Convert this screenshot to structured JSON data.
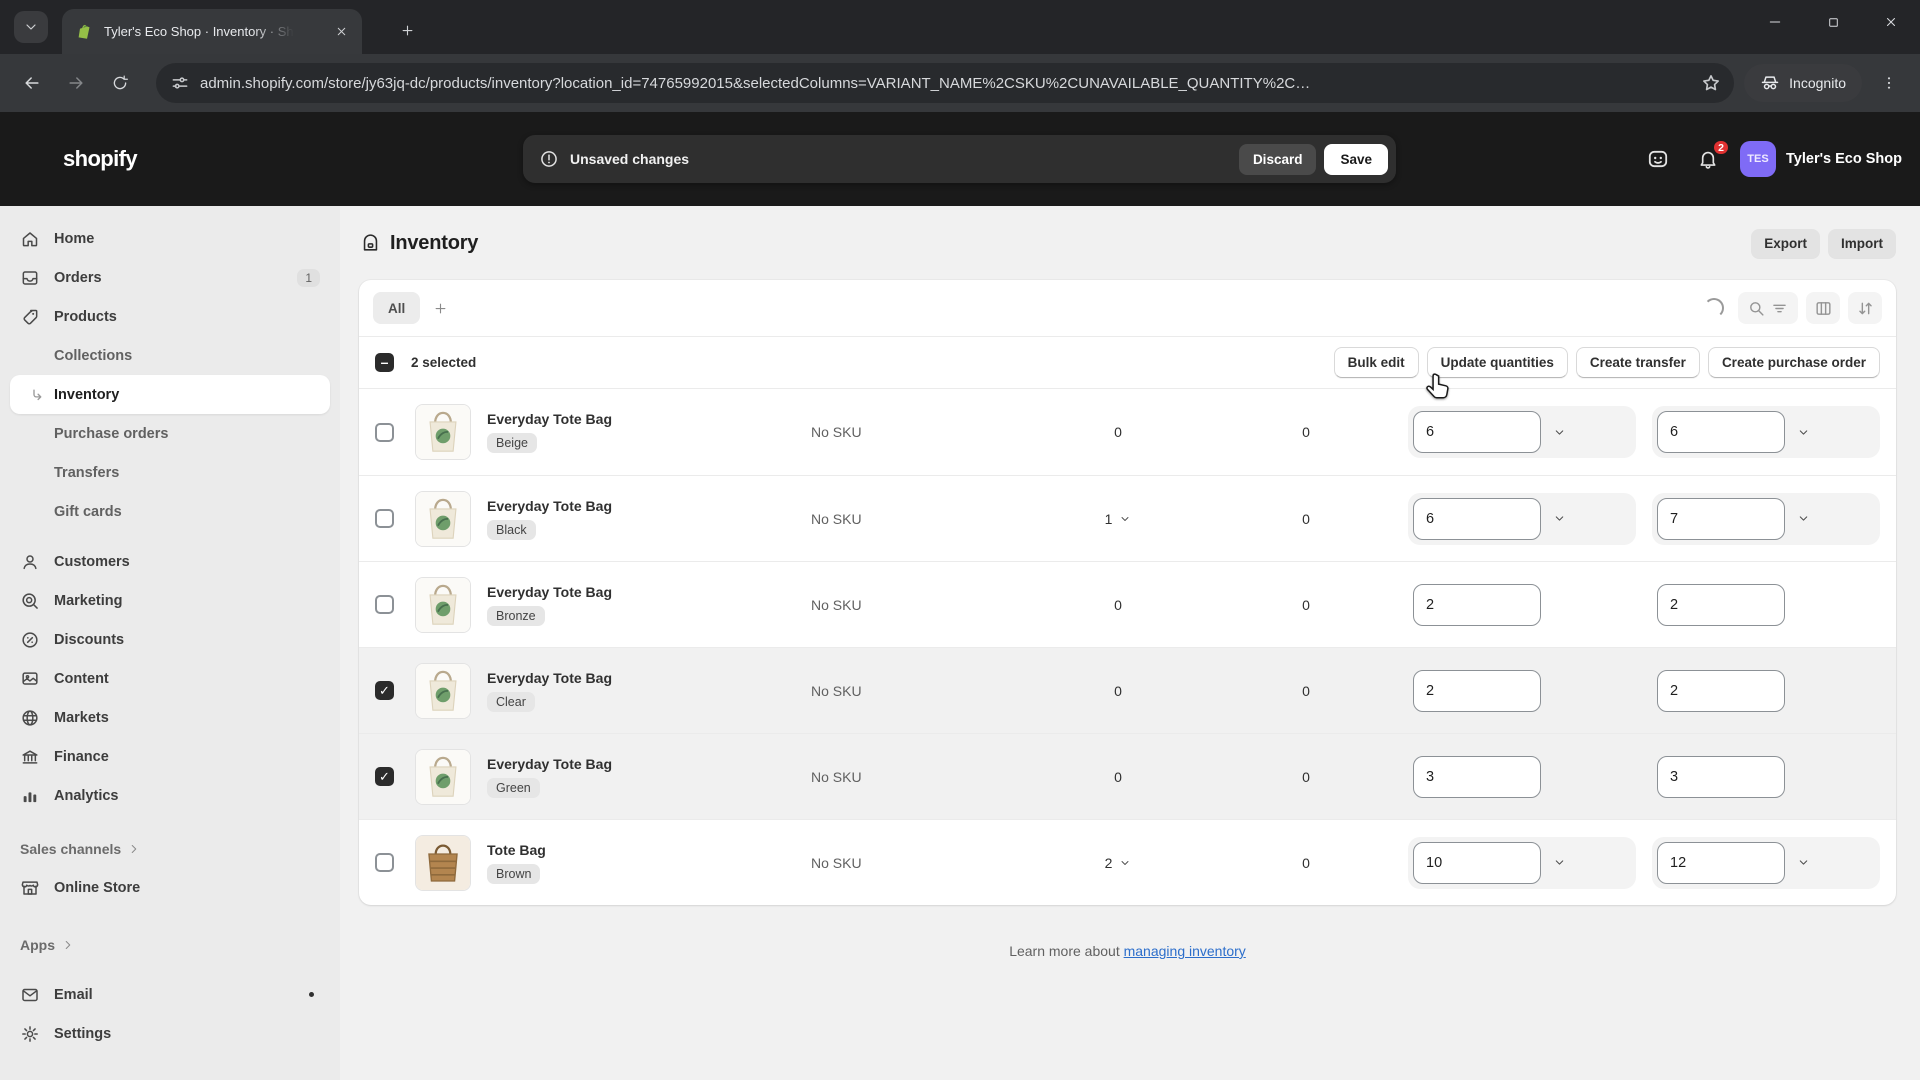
{
  "browser": {
    "tab_title": "Tyler's Eco Shop · Inventory · Sh",
    "url": "admin.shopify.com/store/jy63jq-dc/products/inventory?location_id=74765992015&selectedColumns=VARIANT_NAME%2CSKU%2CUNAVAILABLE_QUANTITY%2C…",
    "incognito_label": "Incognito"
  },
  "topbar": {
    "logo_text": "shopify",
    "unsaved_label": "Unsaved changes",
    "discard_label": "Discard",
    "save_label": "Save",
    "notification_count": "2",
    "avatar_initials": "TES",
    "store_name": "Tyler's Eco Shop"
  },
  "sidebar": {
    "items": [
      {
        "type": "item",
        "icon": "home-icon",
        "label": "Home"
      },
      {
        "type": "item",
        "icon": "orders-icon",
        "label": "Orders",
        "badge": "1"
      },
      {
        "type": "item",
        "icon": "products-icon",
        "label": "Products"
      },
      {
        "type": "subitem",
        "label": "Collections"
      },
      {
        "type": "subitem",
        "label": "Inventory",
        "active": true
      },
      {
        "type": "subitem",
        "label": "Purchase orders"
      },
      {
        "type": "subitem",
        "label": "Transfers"
      },
      {
        "type": "subitem",
        "label": "Gift cards"
      },
      {
        "type": "item",
        "icon": "customers-icon",
        "label": "Customers",
        "group_gap": true
      },
      {
        "type": "item",
        "icon": "marketing-icon",
        "label": "Marketing"
      },
      {
        "type": "item",
        "icon": "discounts-icon",
        "label": "Discounts"
      },
      {
        "type": "item",
        "icon": "content-icon",
        "label": "Content"
      },
      {
        "type": "item",
        "icon": "markets-icon",
        "label": "Markets"
      },
      {
        "type": "item",
        "icon": "finance-icon",
        "label": "Finance"
      },
      {
        "type": "item",
        "icon": "analytics-icon",
        "label": "Analytics"
      },
      {
        "type": "header",
        "label": "Sales channels",
        "gap": "gap-section"
      },
      {
        "type": "item",
        "icon": "online-store-icon",
        "label": "Online Store"
      },
      {
        "type": "header",
        "label": "Apps",
        "gap": "gap-apps"
      },
      {
        "type": "item",
        "icon": "email-icon",
        "label": "Email",
        "dot": true,
        "group_gap": true
      },
      {
        "type": "item",
        "icon": "settings-icon",
        "label": "Settings"
      }
    ]
  },
  "page": {
    "title": "Inventory",
    "export_label": "Export",
    "import_label": "Import",
    "tab_all": "All",
    "selected_text": "2 selected",
    "actions": [
      "Bulk edit",
      "Update quantities",
      "Create transfer",
      "Create purchase order"
    ],
    "footer_prefix": "Learn more about",
    "footer_link": "managing inventory"
  },
  "table": {
    "rows": [
      {
        "product": "Everyday Tote Bag",
        "variant": "Beige",
        "sku": "No SKU",
        "unavailable": "0",
        "unavailable_dropdown": false,
        "committed": "0",
        "available": "6",
        "available_dropdown": true,
        "on_hand": "6",
        "on_hand_dropdown": true,
        "checked": false,
        "thumb": "tote"
      },
      {
        "product": "Everyday Tote Bag",
        "variant": "Black",
        "sku": "No SKU",
        "unavailable": "1",
        "unavailable_dropdown": true,
        "committed": "0",
        "available": "6",
        "available_dropdown": true,
        "on_hand": "7",
        "on_hand_dropdown": true,
        "checked": false,
        "thumb": "tote"
      },
      {
        "product": "Everyday Tote Bag",
        "variant": "Bronze",
        "sku": "No SKU",
        "unavailable": "0",
        "unavailable_dropdown": false,
        "committed": "0",
        "available": "2",
        "available_dropdown": false,
        "on_hand": "2",
        "on_hand_dropdown": false,
        "checked": false,
        "thumb": "tote"
      },
      {
        "product": "Everyday Tote Bag",
        "variant": "Clear",
        "sku": "No SKU",
        "unavailable": "0",
        "unavailable_dropdown": false,
        "committed": "0",
        "available": "2",
        "available_dropdown": false,
        "on_hand": "2",
        "on_hand_dropdown": false,
        "checked": true,
        "thumb": "tote"
      },
      {
        "product": "Everyday Tote Bag",
        "variant": "Green",
        "sku": "No SKU",
        "unavailable": "0",
        "unavailable_dropdown": false,
        "committed": "0",
        "available": "3",
        "available_dropdown": false,
        "on_hand": "3",
        "on_hand_dropdown": false,
        "checked": true,
        "thumb": "tote"
      },
      {
        "product": "Tote Bag",
        "variant": "Brown",
        "sku": "No SKU",
        "unavailable": "2",
        "unavailable_dropdown": true,
        "committed": "0",
        "available": "10",
        "available_dropdown": true,
        "on_hand": "12",
        "on_hand_dropdown": true,
        "checked": false,
        "thumb": "basket"
      }
    ]
  }
}
